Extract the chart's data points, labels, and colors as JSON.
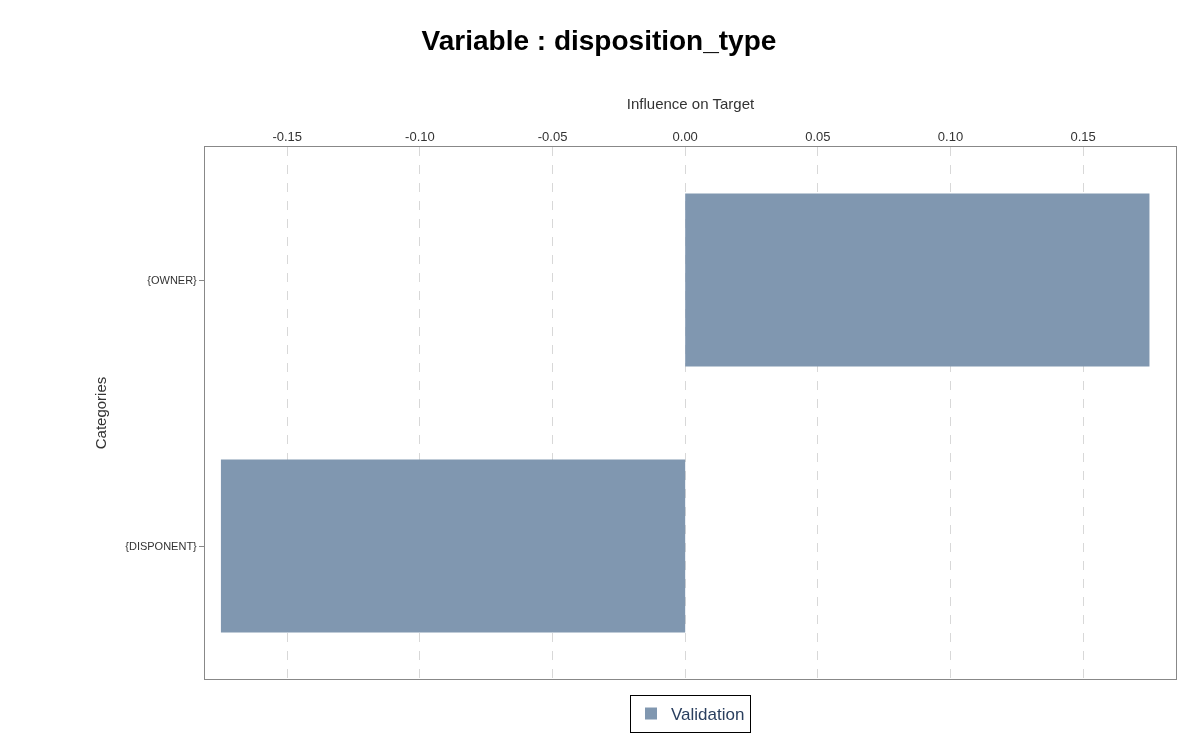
{
  "chart_data": {
    "type": "bar",
    "orientation": "horizontal",
    "title": "Variable : disposition_type",
    "xlabel": "Influence on Target",
    "ylabel": "Categories",
    "categories": [
      "{OWNER}",
      "{DISPONENT}"
    ],
    "series": [
      {
        "name": "Validation",
        "color": "#8097b0",
        "values": [
          0.175,
          -0.175
        ]
      }
    ],
    "xlim": [
      -0.181,
      0.185
    ],
    "xticks": [
      {
        "value": -0.15,
        "label": "-0.15"
      },
      {
        "value": -0.1,
        "label": "-0.10"
      },
      {
        "value": -0.05,
        "label": "-0.05"
      },
      {
        "value": 0,
        "label": "0.00"
      },
      {
        "value": 0.05,
        "label": "0.05"
      },
      {
        "value": 0.1,
        "label": "0.10"
      },
      {
        "value": 0.15,
        "label": "0.15"
      }
    ],
    "grid": "x",
    "legend": "bottom"
  }
}
